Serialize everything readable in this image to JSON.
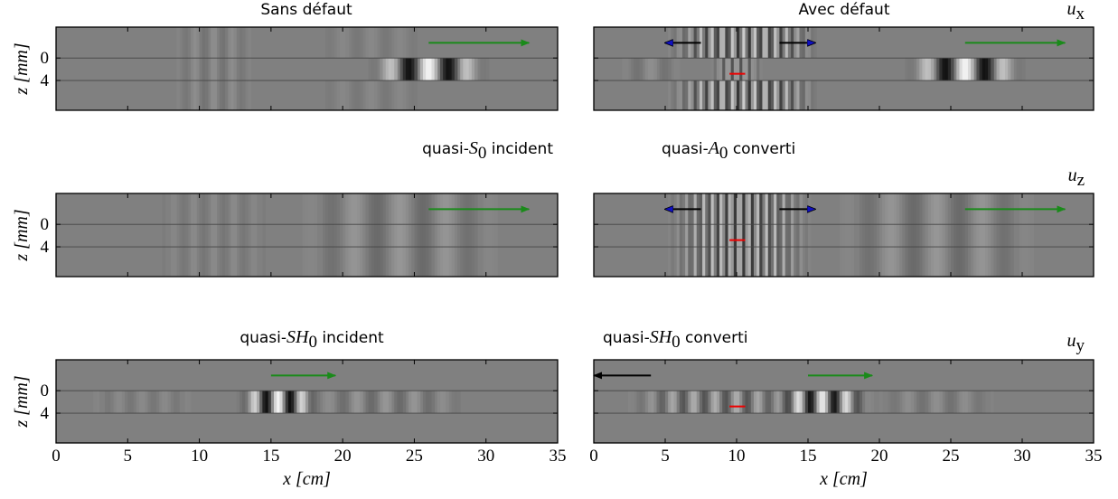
{
  "chart_data": [
    {
      "type": "heatmap",
      "title": "Sans défaut",
      "xlim": [
        0,
        35
      ],
      "xticks": [
        0,
        5,
        10,
        15,
        20,
        25,
        30,
        35
      ],
      "ylim": [
        -5.5,
        9.3
      ],
      "y_inverted": true,
      "yticks": [
        0,
        4
      ],
      "grid": true,
      "ylabel": "z [mm]"
    },
    {
      "type": "heatmap",
      "title": "Avec défaut",
      "component": {
        "base": "u",
        "sub": "x"
      },
      "xlim": [
        0,
        35
      ],
      "xticks": [
        0,
        5,
        10,
        15,
        20,
        25,
        30,
        35
      ],
      "ylim": [
        -5.5,
        9.3
      ],
      "y_inverted": true,
      "yticks": [
        0,
        4
      ],
      "grid": true
    },
    {
      "type": "heatmap",
      "title": {
        "pre": "quasi-",
        "var": "S",
        "sub": "0",
        "post": " incident"
      },
      "xlim": [
        0,
        35
      ],
      "xticks": [
        0,
        5,
        10,
        15,
        20,
        25,
        30,
        35
      ],
      "ylim": [
        -5.5,
        9.3
      ],
      "y_inverted": true,
      "yticks": [
        0,
        4
      ],
      "grid": true,
      "ylabel": "z [mm]"
    },
    {
      "type": "heatmap",
      "title": {
        "pre": "quasi-",
        "var": "A",
        "sub": "0",
        "post": " converti"
      },
      "component": {
        "base": "u",
        "sub": "z"
      },
      "xlim": [
        0,
        35
      ],
      "xticks": [
        0,
        5,
        10,
        15,
        20,
        25,
        30,
        35
      ],
      "ylim": [
        -5.5,
        9.3
      ],
      "y_inverted": true,
      "yticks": [
        0,
        4
      ],
      "grid": true
    },
    {
      "type": "heatmap",
      "title": {
        "pre": "quasi-",
        "var": "SH",
        "sub": "0",
        "post": " incident"
      },
      "xlim": [
        0,
        35
      ],
      "xticks": [
        0,
        5,
        10,
        15,
        20,
        25,
        30,
        35
      ],
      "ylim": [
        -5.5,
        9.3
      ],
      "y_inverted": true,
      "yticks": [
        0,
        4
      ],
      "grid": true,
      "ylabel": "z [mm]",
      "xlabel": "x [cm]"
    },
    {
      "type": "heatmap",
      "title": {
        "pre": "quasi-",
        "var": "SH",
        "sub": "0",
        "post": " converti"
      },
      "component": {
        "base": "u",
        "sub": "y"
      },
      "xlim": [
        0,
        35
      ],
      "xticks": [
        0,
        5,
        10,
        15,
        20,
        25,
        30,
        35
      ],
      "ylim": [
        -5.5,
        9.3
      ],
      "y_inverted": true,
      "yticks": [
        0,
        4
      ],
      "grid": true,
      "xlabel": "x [cm]"
    }
  ]
}
